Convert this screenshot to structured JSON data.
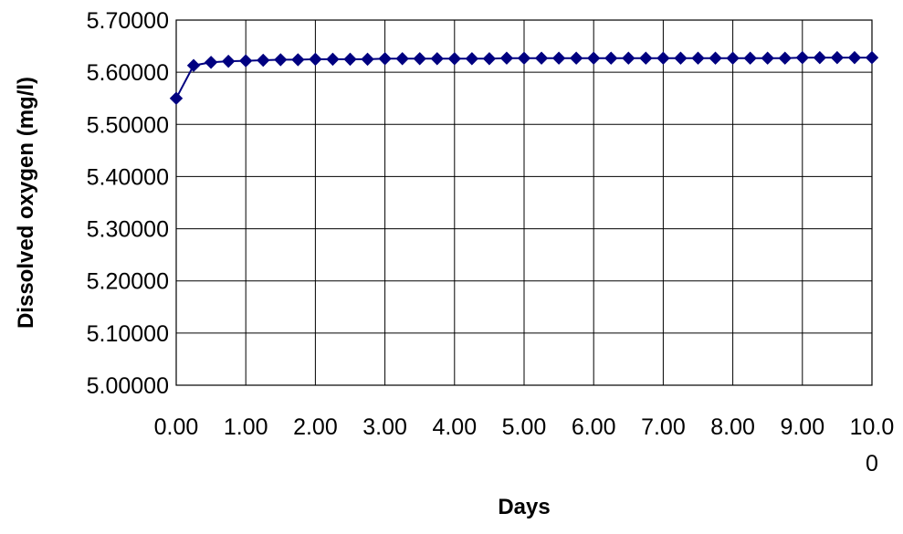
{
  "chart_data": {
    "type": "line",
    "title": "",
    "xlabel": "Days",
    "ylabel": "Dissolved oxygen (mg/l)",
    "xlim": [
      0,
      10
    ],
    "ylim": [
      5.0,
      5.7
    ],
    "grid": true,
    "legend": "none",
    "x_tick_values": [
      0,
      1,
      2,
      3,
      4,
      5,
      6,
      7,
      8,
      9,
      10
    ],
    "x_tick_labels": [
      "0.00",
      "1.00",
      "2.00",
      "3.00",
      "4.00",
      "5.00",
      "6.00",
      "7.00",
      "8.00",
      "9.00",
      "10.0\n0"
    ],
    "y_tick_values": [
      5.0,
      5.1,
      5.2,
      5.3,
      5.4,
      5.5,
      5.6,
      5.7
    ],
    "y_tick_labels": [
      "5.00000",
      "5.10000",
      "5.20000",
      "5.30000",
      "5.40000",
      "5.50000",
      "5.60000",
      "5.70000"
    ],
    "series": [
      {
        "color": "#000080",
        "marker": "diamond",
        "x": [
          0,
          0.25,
          0.5,
          0.75,
          1,
          1.25,
          1.5,
          1.75,
          2,
          2.25,
          2.5,
          2.75,
          3,
          3.25,
          3.5,
          3.75,
          4,
          4.25,
          4.5,
          4.75,
          5,
          5.25,
          5.5,
          5.75,
          6,
          6.25,
          6.5,
          6.75,
          7,
          7.25,
          7.5,
          7.75,
          8,
          8.25,
          8.5,
          8.75,
          9,
          9.25,
          9.5,
          9.75,
          10
        ],
        "values": [
          5.55,
          5.613,
          5.619,
          5.621,
          5.622,
          5.623,
          5.624,
          5.624,
          5.625,
          5.625,
          5.625,
          5.625,
          5.626,
          5.626,
          5.626,
          5.626,
          5.626,
          5.626,
          5.626,
          5.627,
          5.627,
          5.627,
          5.627,
          5.627,
          5.627,
          5.627,
          5.627,
          5.627,
          5.627,
          5.627,
          5.627,
          5.627,
          5.627,
          5.627,
          5.627,
          5.627,
          5.628,
          5.628,
          5.628,
          5.628,
          5.628
        ]
      }
    ]
  }
}
